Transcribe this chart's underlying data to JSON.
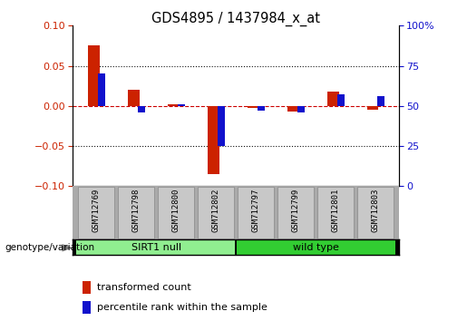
{
  "title": "GDS4895 / 1437984_x_at",
  "samples": [
    "GSM712769",
    "GSM712798",
    "GSM712800",
    "GSM712802",
    "GSM712797",
    "GSM712799",
    "GSM712801",
    "GSM712803"
  ],
  "transformed_count": [
    0.075,
    0.02,
    0.002,
    -0.085,
    -0.003,
    -0.007,
    0.018,
    -0.005
  ],
  "percentile_rank_right": [
    70,
    46,
    51,
    25,
    47,
    46,
    57,
    56
  ],
  "sirt1_null_count": 4,
  "wild_type_count": 4,
  "ylim": [
    -0.1,
    0.1
  ],
  "yticks_left": [
    -0.1,
    -0.05,
    0.0,
    0.05,
    0.1
  ],
  "yticks_right": [
    0,
    25,
    50,
    75,
    100
  ],
  "bar_color_red": "#CC2200",
  "bar_color_blue": "#1111CC",
  "hline_color": "#CC0000",
  "dot_line_color": "#111111",
  "tick_color_left": "#CC2200",
  "tick_color_right": "#1111CC",
  "sirt1_color": "#90EE90",
  "wt_color": "#32CD32",
  "group_divider_color": "#000000",
  "sample_box_color": "#C8C8C8",
  "sample_box_edge": "#888888",
  "legend_red_label": "transformed count",
  "legend_blue_label": "percentile rank within the sample",
  "group_label": "genotype/variation",
  "sirt1_label": "SIRT1 null",
  "wt_label": "wild type"
}
